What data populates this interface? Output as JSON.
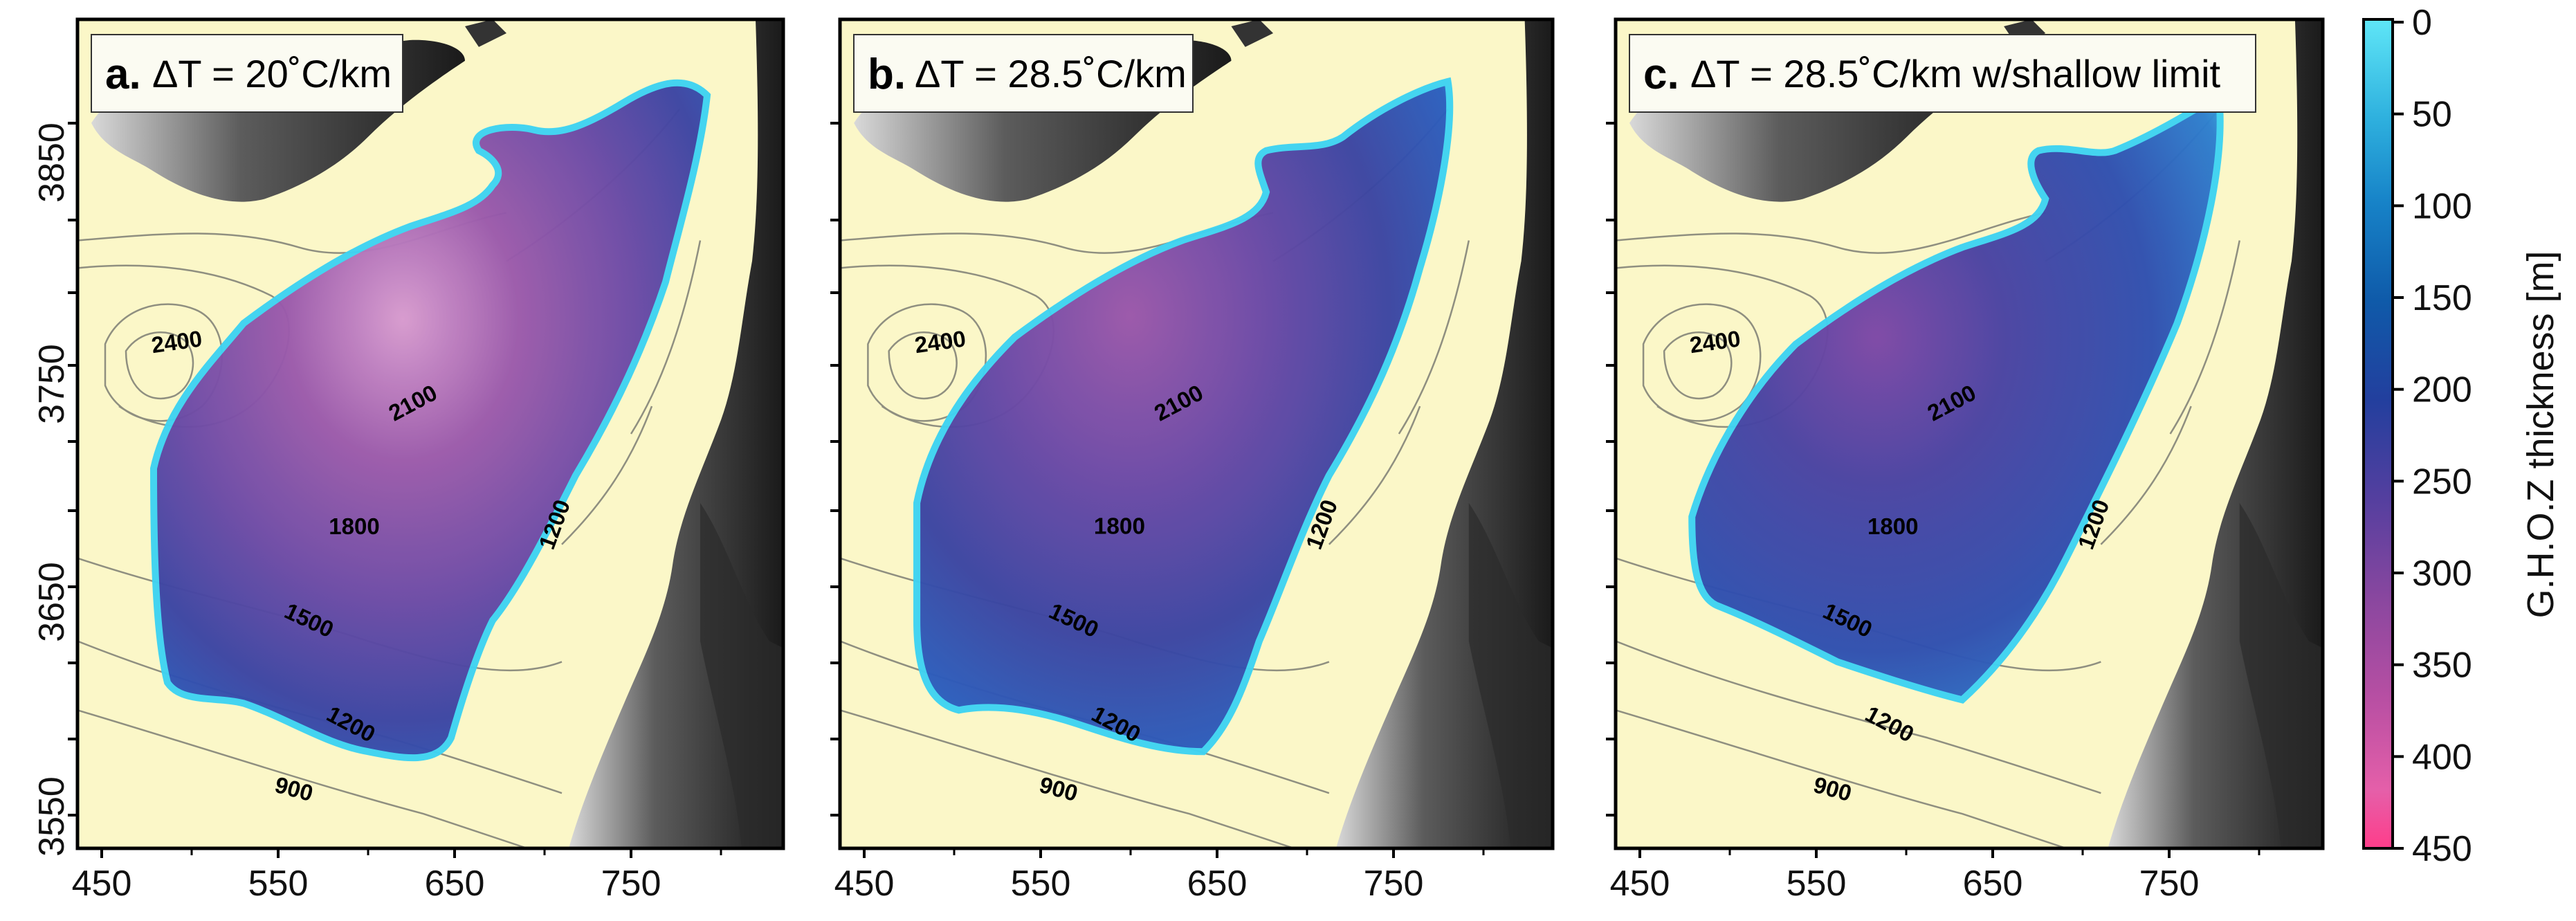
{
  "figure": {
    "panels": [
      {
        "letter": "a.",
        "title": "ΔT  = 20˚C/km",
        "contours": [
          {
            "value": "2400"
          },
          {
            "value": "2100"
          },
          {
            "value": "1800"
          },
          {
            "value": "1500"
          },
          {
            "value": "1200"
          },
          {
            "value": "1200"
          },
          {
            "value": "900"
          }
        ],
        "fill_level": 0.72
      },
      {
        "letter": "b.",
        "title": "ΔT  = 28.5˚C/km",
        "contours": [
          {
            "value": "2400"
          },
          {
            "value": "2100"
          },
          {
            "value": "1800"
          },
          {
            "value": "1500"
          },
          {
            "value": "1200"
          },
          {
            "value": "1200"
          },
          {
            "value": "900"
          }
        ],
        "fill_level": 0.55
      },
      {
        "letter": "c.",
        "title": "ΔT  = 28.5˚C/km  w/shallow limit",
        "contours": [
          {
            "value": "2400"
          },
          {
            "value": "2100"
          },
          {
            "value": "1800"
          },
          {
            "value": "1500"
          },
          {
            "value": "1200"
          },
          {
            "value": "1200"
          },
          {
            "value": "900"
          }
        ],
        "fill_level": 0.45
      }
    ],
    "x_ticks": [
      "450",
      "550",
      "650",
      "750"
    ],
    "y_ticks": [
      "3850",
      "3750",
      "3650",
      "3550"
    ],
    "colorbar": {
      "label": "G.H.O.Z thickness  [m]",
      "ticks": [
        "0",
        "50",
        "100",
        "150",
        "200",
        "250",
        "300",
        "350",
        "400",
        "450"
      ],
      "range": [
        0,
        450
      ],
      "colors": [
        "#4ee0f5",
        "#2a9fd6",
        "#0f6fb6",
        "#1a4ea4",
        "#2b3d9a",
        "#5a3f9e",
        "#8a469f",
        "#b24fa2",
        "#de5fa8",
        "#ff6cb0"
      ]
    },
    "colors": {
      "background": "#fbf7c8",
      "land": "#3a3a3a",
      "contour": "#8a8a7a",
      "frame": "#000000"
    }
  }
}
